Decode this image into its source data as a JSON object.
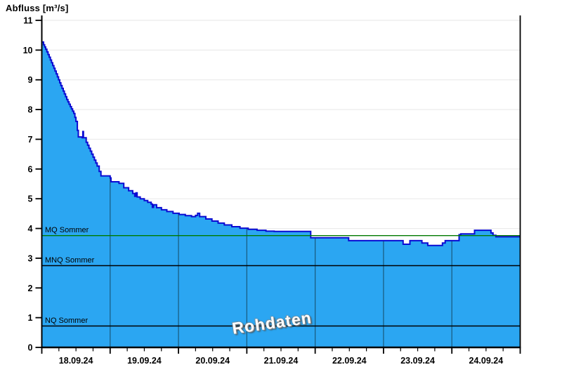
{
  "title": "Abfluss [m³/s]",
  "watermark": "Rohdaten",
  "colors": {
    "area_fill": "#2BA6F2",
    "curve_line": "#0B0BD2",
    "mq_line_green": "#007A00",
    "reference_black": "#000000",
    "horizontal_grid": "#EBEBEB",
    "vertical_day_grid": "#1A5E84",
    "axis": "#000000",
    "background": "#FFFFFF",
    "text": "#000000"
  },
  "chart_data": {
    "type": "area",
    "title": "Abfluss [m³/s]",
    "ylabel": "Abfluss [m³/s]",
    "xlabel": "",
    "ylim": [
      0,
      11
    ],
    "xlim_days": [
      0,
      7
    ],
    "grid": "horizontal light gray behind fill; vertical day lines visible inside fill only",
    "legend_position": "none",
    "y_ticks": [
      0,
      1,
      2,
      3,
      4,
      5,
      6,
      7,
      8,
      9,
      10,
      11
    ],
    "x_tick_labels": [
      "18.09.24",
      "19.09.24",
      "20.09.24",
      "21.09.24",
      "22.09.24",
      "23.09.24",
      "24.09.24"
    ],
    "x_minor_ticks_per_day": 4,
    "reference_lines": [
      {
        "label": "MQ Sommer",
        "value": 3.76,
        "color": "#007A00"
      },
      {
        "label": "MNQ Sommer",
        "value": 2.75,
        "color": "#000000"
      },
      {
        "label": "NQ Sommer",
        "value": 0.72,
        "color": "#000000"
      }
    ],
    "series": [
      {
        "name": "Rohdaten",
        "step": true,
        "x_unit": "days since 18.09.24 00:00",
        "points": [
          [
            0.0,
            10.27
          ],
          [
            0.026,
            10.18
          ],
          [
            0.057,
            10.03
          ],
          [
            0.108,
            9.76
          ],
          [
            0.159,
            9.48
          ],
          [
            0.211,
            9.2
          ],
          [
            0.262,
            8.9
          ],
          [
            0.313,
            8.62
          ],
          [
            0.365,
            8.34
          ],
          [
            0.416,
            8.1
          ],
          [
            0.468,
            7.87
          ],
          [
            0.5,
            7.6
          ],
          [
            0.52,
            7.3
          ],
          [
            0.535,
            7.08
          ],
          [
            0.59,
            7.05
          ],
          [
            0.6,
            7.26
          ],
          [
            0.61,
            7.05
          ],
          [
            0.65,
            6.9
          ],
          [
            0.69,
            6.7
          ],
          [
            0.73,
            6.5
          ],
          [
            0.77,
            6.3
          ],
          [
            0.81,
            6.1
          ],
          [
            0.84,
            5.92
          ],
          [
            0.865,
            5.77
          ],
          [
            1.0,
            5.7
          ],
          [
            1.012,
            5.57
          ],
          [
            1.13,
            5.52
          ],
          [
            1.2,
            5.37
          ],
          [
            1.27,
            5.27
          ],
          [
            1.33,
            5.18
          ],
          [
            1.36,
            5.08
          ],
          [
            1.378,
            5.2
          ],
          [
            1.395,
            5.06
          ],
          [
            1.44,
            5.0
          ],
          [
            1.5,
            4.94
          ],
          [
            1.55,
            4.88
          ],
          [
            1.6,
            4.82
          ],
          [
            1.618,
            4.71
          ],
          [
            1.635,
            4.8
          ],
          [
            1.68,
            4.7
          ],
          [
            1.75,
            4.63
          ],
          [
            1.83,
            4.57
          ],
          [
            1.92,
            4.51
          ],
          [
            2.01,
            4.47
          ],
          [
            2.1,
            4.43
          ],
          [
            2.19,
            4.4
          ],
          [
            2.25,
            4.44
          ],
          [
            2.28,
            4.51
          ],
          [
            2.31,
            4.4
          ],
          [
            2.4,
            4.32
          ],
          [
            2.49,
            4.25
          ],
          [
            2.58,
            4.18
          ],
          [
            2.67,
            4.12
          ],
          [
            2.78,
            4.06
          ],
          [
            2.9,
            4.01
          ],
          [
            3.02,
            3.97
          ],
          [
            3.15,
            3.94
          ],
          [
            3.28,
            3.91
          ],
          [
            3.4,
            3.9
          ],
          [
            3.92,
            3.9
          ],
          [
            3.935,
            3.69
          ],
          [
            4.47,
            3.69
          ],
          [
            4.49,
            3.59
          ],
          [
            5.272,
            3.59
          ],
          [
            5.287,
            3.47
          ],
          [
            5.37,
            3.47
          ],
          [
            5.386,
            3.59
          ],
          [
            5.532,
            3.59
          ],
          [
            5.562,
            3.51
          ],
          [
            5.625,
            3.51
          ],
          [
            5.647,
            3.43
          ],
          [
            5.832,
            3.43
          ],
          [
            5.862,
            3.51
          ],
          [
            5.902,
            3.59
          ],
          [
            6.076,
            3.59
          ],
          [
            6.106,
            3.79
          ],
          [
            6.13,
            3.82
          ],
          [
            6.302,
            3.82
          ],
          [
            6.332,
            3.94
          ],
          [
            6.54,
            3.94
          ],
          [
            6.572,
            3.85
          ],
          [
            6.602,
            3.77
          ],
          [
            6.644,
            3.72
          ],
          [
            7.0,
            3.72
          ]
        ]
      }
    ]
  }
}
